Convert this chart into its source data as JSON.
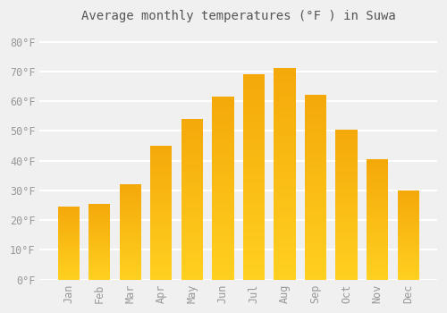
{
  "title": "Average monthly temperatures (°F ) in Suwa",
  "months": [
    "Jan",
    "Feb",
    "Mar",
    "Apr",
    "May",
    "Jun",
    "Jul",
    "Aug",
    "Sep",
    "Oct",
    "Nov",
    "Dec"
  ],
  "values": [
    24.5,
    25.5,
    32.0,
    45.0,
    54.0,
    61.5,
    69.0,
    71.0,
    62.0,
    50.5,
    40.5,
    30.0
  ],
  "bar_color_bottom": "#FFD040",
  "bar_color_top": "#F5A800",
  "background_color": "#F0F0F0",
  "grid_color": "#FFFFFF",
  "yticks": [
    0,
    10,
    20,
    30,
    40,
    50,
    60,
    70,
    80
  ],
  "ylim": [
    0,
    84
  ],
  "tick_label_color": "#999999",
  "title_color": "#555555",
  "title_fontsize": 10,
  "tick_fontsize": 8.5,
  "xlabel_fontsize": 8.5,
  "bar_width": 0.7
}
